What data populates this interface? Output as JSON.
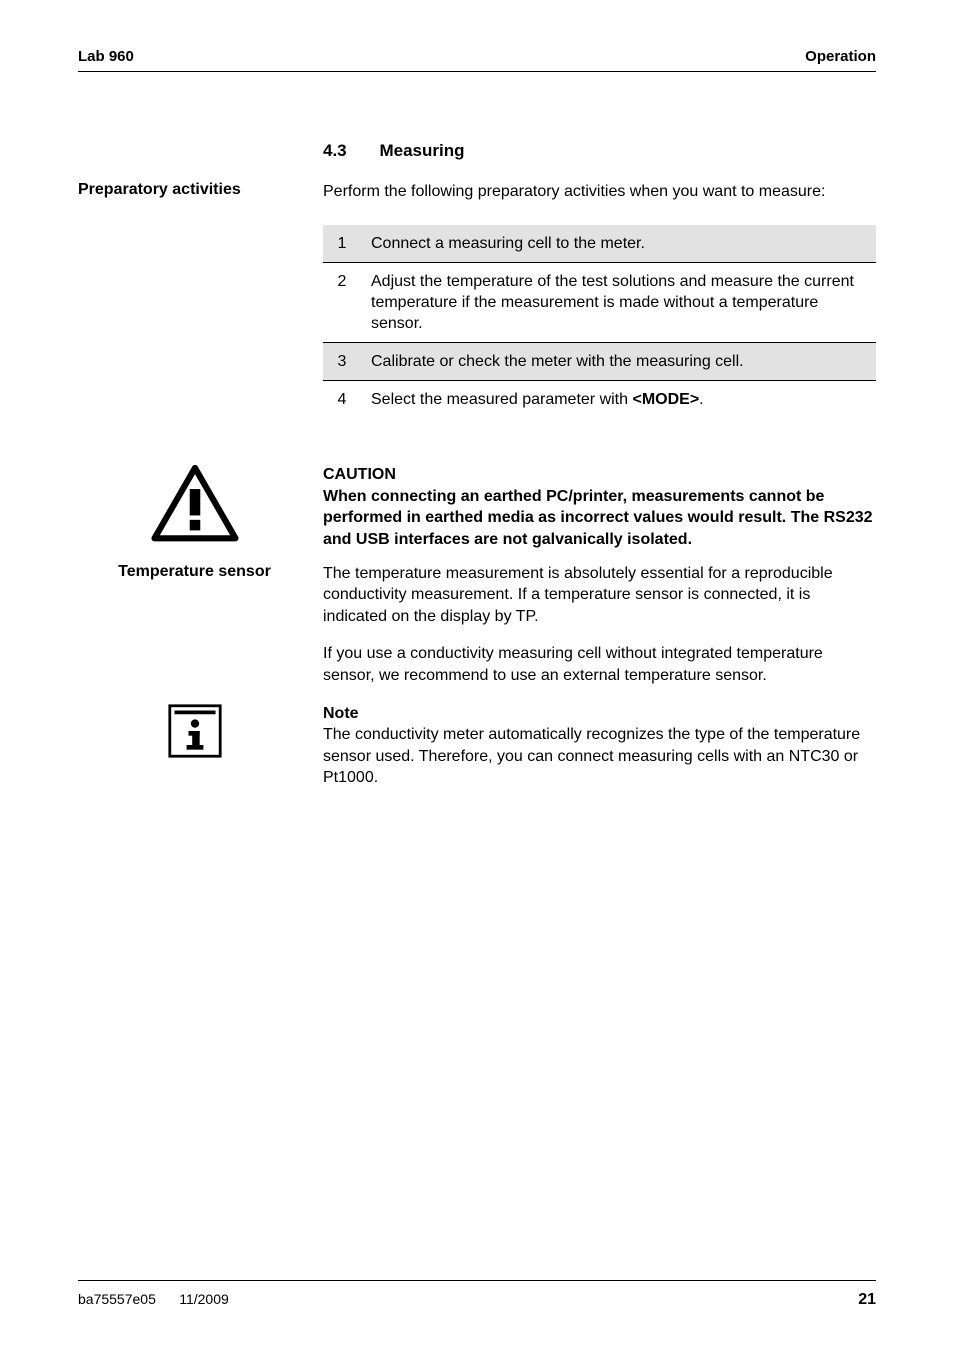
{
  "header": {
    "left": "Lab 960",
    "right": "Operation"
  },
  "section": {
    "number": "4.3",
    "title": "Measuring"
  },
  "prep": {
    "label": "Preparatory activities",
    "intro": "Perform the following preparatory activities when you want to measure:"
  },
  "steps": {
    "rows": [
      {
        "n": "1",
        "text": "Connect a measuring cell to the meter.",
        "shaded": true
      },
      {
        "n": "2",
        "text": "Adjust the temperature of the test solutions and measure the current temperature if the measurement is made without a temperature sensor.",
        "shaded": false
      },
      {
        "n": "3",
        "text": "Calibrate or check the meter with the measuring cell.",
        "shaded": true
      },
      {
        "n": "4",
        "text_parts": [
          "Select the measured parameter with ",
          "<MODE>",
          "."
        ],
        "shaded": false
      }
    ]
  },
  "caution": {
    "heading": "CAUTION",
    "body": "When connecting an earthed PC/printer, measurements cannot be performed in earthed media as incorrect values would result. The RS232 and USB interfaces are not galvanically isolated."
  },
  "temp_sensor": {
    "label": "Temperature sensor",
    "p1": "The temperature measurement is absolutely essential for a reproducible conductivity measurement. If a temperature sensor is connected, it is indicated on the display by TP.",
    "p2": "If you use a conductivity measuring cell without integrated temperature sensor, we recommend to use an external temperature sensor."
  },
  "note": {
    "heading": "Note",
    "body": "The conductivity meter automatically recognizes the type of the temperature sensor used. Therefore, you can connect measuring cells with an NTC30 or Pt1000."
  },
  "footer": {
    "doc": "ba75557e05",
    "date": "11/2009",
    "page": "21"
  },
  "colors": {
    "shade": "#e2e2e2",
    "text": "#000000",
    "bg": "#ffffff"
  }
}
